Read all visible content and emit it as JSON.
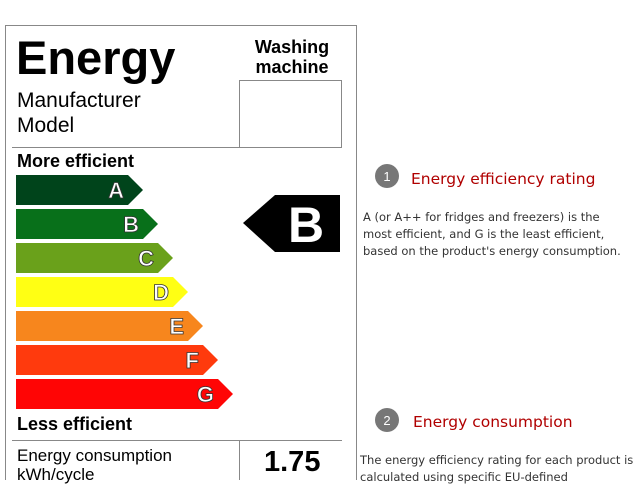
{
  "label": {
    "title": "Energy",
    "appliance": [
      "Washing",
      "machine"
    ],
    "fields": [
      "Manufacturer",
      "Model"
    ],
    "more_efficient": "More efficient",
    "less_efficient": "Less efficient",
    "bands": [
      {
        "letter": "A",
        "color": "#00441b"
      },
      {
        "letter": "B",
        "color": "#08701a"
      },
      {
        "letter": "C",
        "color": "#6aa11b"
      },
      {
        "letter": "D",
        "color": "#ffff14"
      },
      {
        "letter": "E",
        "color": "#f7861d"
      },
      {
        "letter": "F",
        "color": "#ff3a0d"
      },
      {
        "letter": "G",
        "color": "#ff0505"
      }
    ],
    "rating": "B",
    "consumption_label": [
      "Energy consumption",
      "kWh/cycle"
    ],
    "consumption_value": "1.75"
  },
  "notes": [
    {
      "number": "1",
      "heading": "Energy efficiency rating",
      "text": "A (or A++ for fridges and freezers) is the most efficient, and G is the least efficient, based on the product's energy consumption."
    },
    {
      "number": "2",
      "heading": "Energy consumption",
      "text": "The energy efficiency rating for each product is calculated using specific EU-defined"
    }
  ]
}
